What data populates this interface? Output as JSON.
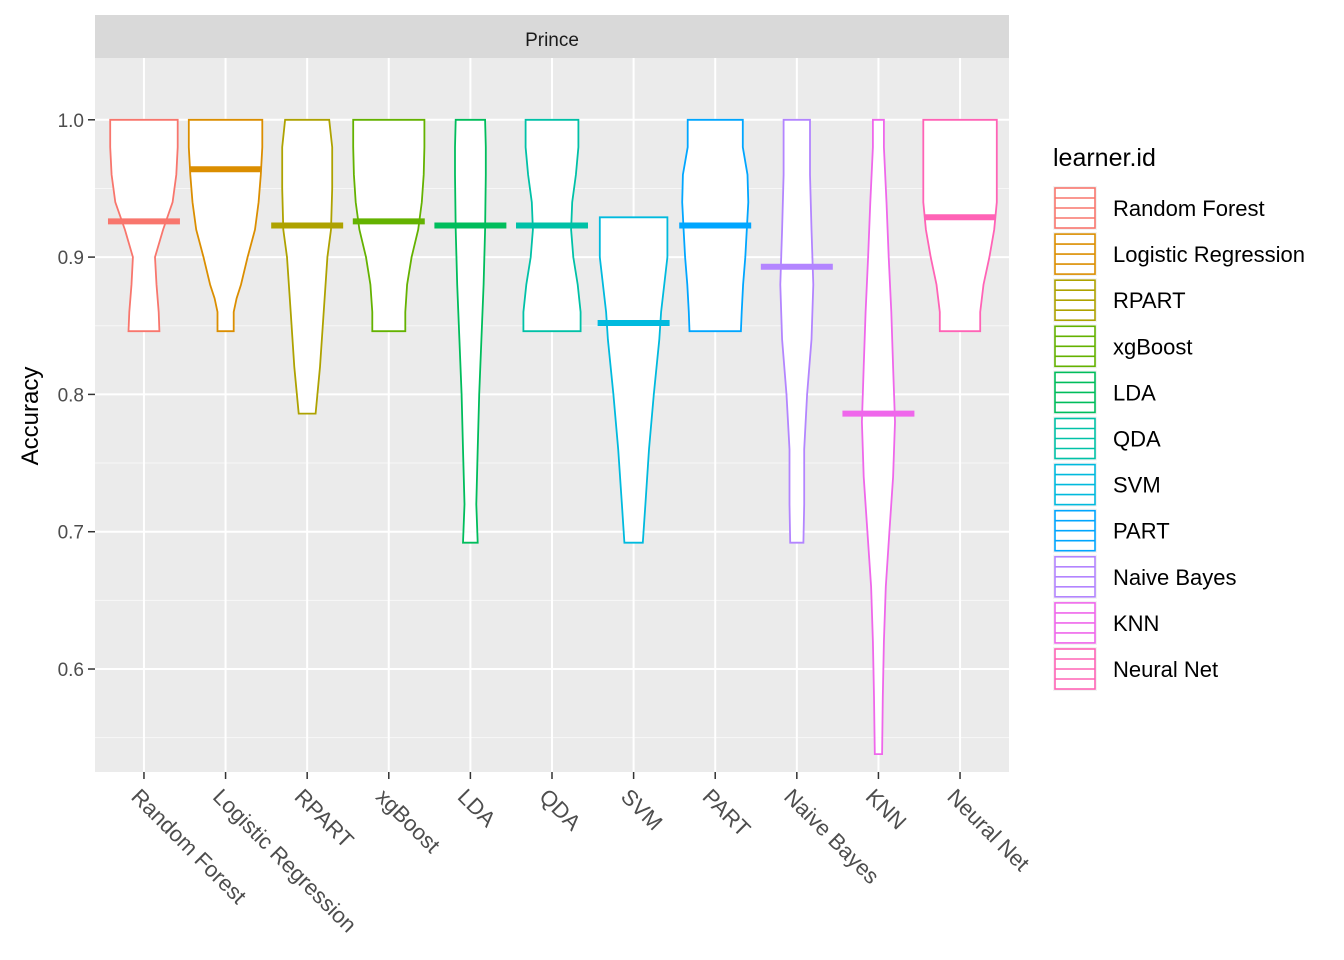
{
  "chart_data": {
    "type": "violin",
    "facet_label": "Prince",
    "ylabel": "Accuracy",
    "xlabel": "",
    "ylim": [
      0.525,
      1.045
    ],
    "y_ticks": [
      0.6,
      0.7,
      0.8,
      0.9,
      1.0
    ],
    "y_tick_labels": [
      "0.6",
      "0.7",
      "0.8",
      "0.9",
      "1.0"
    ],
    "grid": true,
    "legend_title": "learner.id",
    "legend_placement": "right",
    "categories": [
      "Random Forest",
      "Logistic Regression",
      "RPART",
      "xgBoost",
      "LDA",
      "QDA",
      "SVM",
      "PART",
      "Naive Bayes",
      "KNN",
      "Neural Net"
    ],
    "series": [
      {
        "name": "Random Forest",
        "color": "#F8766D",
        "min": 0.846,
        "max": 1.0,
        "median": 0.926,
        "profile": [
          [
            0.846,
            0.42
          ],
          [
            0.86,
            0.4
          ],
          [
            0.88,
            0.34
          ],
          [
            0.9,
            0.3
          ],
          [
            0.92,
            0.52
          ],
          [
            0.94,
            0.78
          ],
          [
            0.96,
            0.88
          ],
          [
            0.98,
            0.92
          ],
          [
            1.0,
            0.92
          ]
        ]
      },
      {
        "name": "Logistic Regression",
        "color": "#DB8E00",
        "min": 0.846,
        "max": 1.0,
        "median": 0.964,
        "profile": [
          [
            0.846,
            0.22
          ],
          [
            0.86,
            0.22
          ],
          [
            0.87,
            0.3
          ],
          [
            0.88,
            0.42
          ],
          [
            0.9,
            0.6
          ],
          [
            0.92,
            0.8
          ],
          [
            0.94,
            0.9
          ],
          [
            0.96,
            0.96
          ],
          [
            0.98,
            1.0
          ],
          [
            1.0,
            1.0
          ]
        ]
      },
      {
        "name": "RPART",
        "color": "#AEA200",
        "min": 0.786,
        "max": 1.0,
        "median": 0.923,
        "profile": [
          [
            0.786,
            0.23
          ],
          [
            0.82,
            0.35
          ],
          [
            0.86,
            0.45
          ],
          [
            0.9,
            0.55
          ],
          [
            0.92,
            0.65
          ],
          [
            0.95,
            0.68
          ],
          [
            0.98,
            0.68
          ],
          [
            1.0,
            0.6
          ]
        ]
      },
      {
        "name": "xgBoost",
        "color": "#64B200",
        "min": 0.846,
        "max": 1.0,
        "median": 0.926,
        "profile": [
          [
            0.846,
            0.45
          ],
          [
            0.86,
            0.45
          ],
          [
            0.88,
            0.5
          ],
          [
            0.9,
            0.62
          ],
          [
            0.92,
            0.8
          ],
          [
            0.94,
            0.9
          ],
          [
            0.96,
            0.95
          ],
          [
            0.98,
            0.97
          ],
          [
            1.0,
            0.97
          ]
        ]
      },
      {
        "name": "LDA",
        "color": "#00BD5C",
        "min": 0.692,
        "max": 1.0,
        "median": 0.923,
        "profile": [
          [
            0.692,
            0.2
          ],
          [
            0.72,
            0.16
          ],
          [
            0.76,
            0.2
          ],
          [
            0.8,
            0.24
          ],
          [
            0.84,
            0.3
          ],
          [
            0.88,
            0.36
          ],
          [
            0.92,
            0.4
          ],
          [
            0.96,
            0.42
          ],
          [
            0.98,
            0.42
          ],
          [
            1.0,
            0.4
          ]
        ]
      },
      {
        "name": "QDA",
        "color": "#00C1A7",
        "min": 0.846,
        "max": 1.0,
        "median": 0.923,
        "profile": [
          [
            0.846,
            0.78
          ],
          [
            0.86,
            0.78
          ],
          [
            0.88,
            0.7
          ],
          [
            0.9,
            0.58
          ],
          [
            0.92,
            0.52
          ],
          [
            0.94,
            0.55
          ],
          [
            0.96,
            0.65
          ],
          [
            0.98,
            0.72
          ],
          [
            1.0,
            0.72
          ]
        ]
      },
      {
        "name": "SVM",
        "color": "#00BADE",
        "min": 0.692,
        "max": 0.929,
        "median": 0.852,
        "profile": [
          [
            0.692,
            0.25
          ],
          [
            0.72,
            0.32
          ],
          [
            0.76,
            0.42
          ],
          [
            0.8,
            0.55
          ],
          [
            0.84,
            0.7
          ],
          [
            0.86,
            0.75
          ],
          [
            0.9,
            0.92
          ],
          [
            0.929,
            0.92
          ]
        ]
      },
      {
        "name": "PART",
        "color": "#00A6FF",
        "min": 0.846,
        "max": 1.0,
        "median": 0.923,
        "profile": [
          [
            0.846,
            0.7
          ],
          [
            0.86,
            0.72
          ],
          [
            0.88,
            0.76
          ],
          [
            0.9,
            0.82
          ],
          [
            0.92,
            0.86
          ],
          [
            0.94,
            0.9
          ],
          [
            0.96,
            0.88
          ],
          [
            0.98,
            0.75
          ],
          [
            1.0,
            0.75
          ]
        ]
      },
      {
        "name": "Naive Bayes",
        "color": "#B385FF",
        "min": 0.692,
        "max": 1.0,
        "median": 0.893,
        "profile": [
          [
            0.692,
            0.18
          ],
          [
            0.72,
            0.2
          ],
          [
            0.76,
            0.2
          ],
          [
            0.8,
            0.28
          ],
          [
            0.84,
            0.4
          ],
          [
            0.88,
            0.45
          ],
          [
            0.92,
            0.4
          ],
          [
            0.96,
            0.36
          ],
          [
            1.0,
            0.36
          ]
        ]
      },
      {
        "name": "KNN",
        "color": "#EF67EB",
        "min": 0.538,
        "max": 1.0,
        "median": 0.786,
        "profile": [
          [
            0.538,
            0.1
          ],
          [
            0.58,
            0.12
          ],
          [
            0.62,
            0.15
          ],
          [
            0.66,
            0.2
          ],
          [
            0.7,
            0.3
          ],
          [
            0.74,
            0.4
          ],
          [
            0.78,
            0.45
          ],
          [
            0.82,
            0.4
          ],
          [
            0.86,
            0.35
          ],
          [
            0.9,
            0.28
          ],
          [
            0.94,
            0.22
          ],
          [
            0.98,
            0.15
          ],
          [
            1.0,
            0.15
          ]
        ]
      },
      {
        "name": "Neural Net",
        "color": "#FF63B6",
        "min": 0.846,
        "max": 1.0,
        "median": 0.929,
        "profile": [
          [
            0.846,
            0.55
          ],
          [
            0.86,
            0.55
          ],
          [
            0.88,
            0.64
          ],
          [
            0.9,
            0.8
          ],
          [
            0.92,
            0.93
          ],
          [
            0.94,
            1.0
          ],
          [
            0.96,
            1.0
          ],
          [
            0.98,
            1.0
          ],
          [
            1.0,
            1.0
          ]
        ]
      }
    ]
  }
}
